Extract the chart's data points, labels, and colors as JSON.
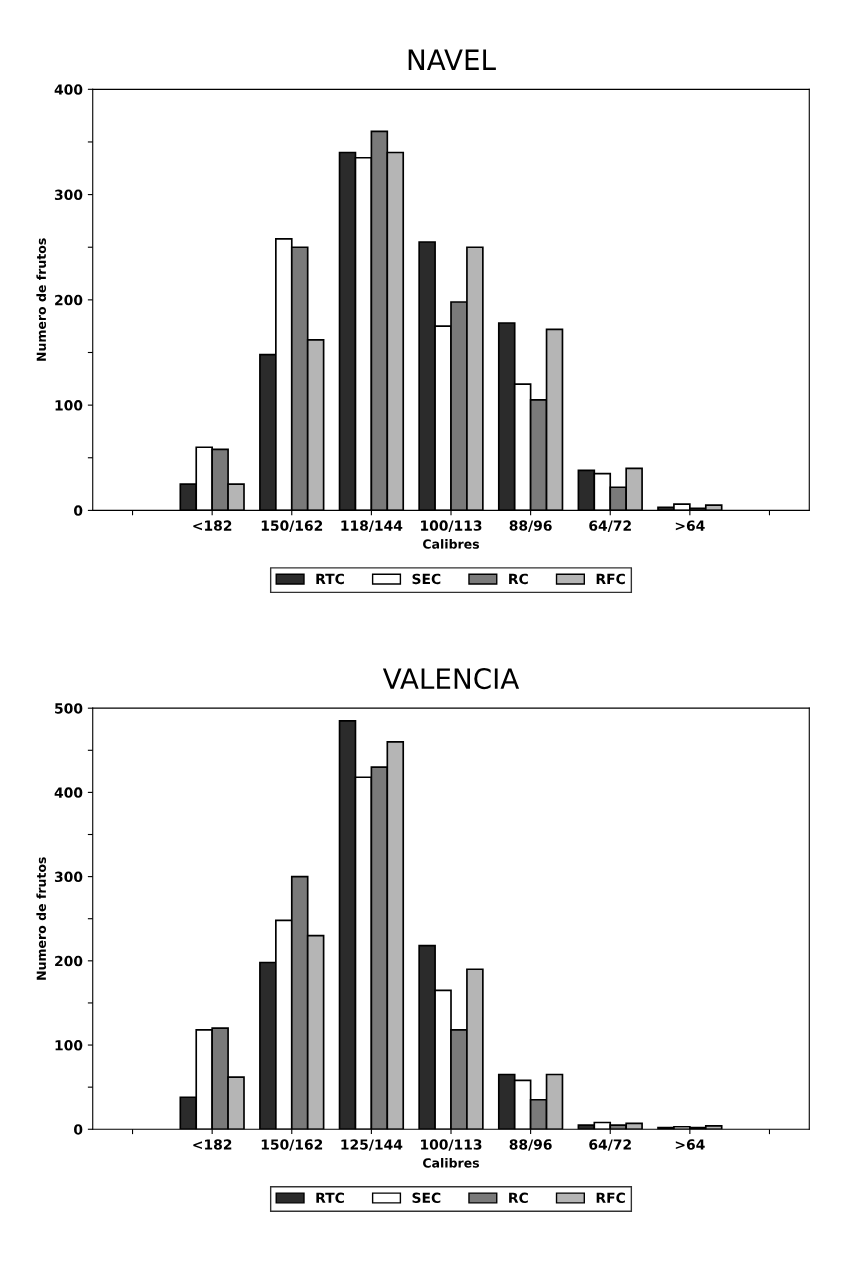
{
  "chart_data": [
    {
      "type": "bar",
      "title": "NAVEL",
      "xlabel": "Calibres",
      "ylabel": "Numero de frutos",
      "categories": [
        null,
        "<182",
        "150/162",
        "118/144",
        "100/113",
        "88/96",
        "64/72",
        ">64",
        null
      ],
      "series": [
        {
          "name": "RTC",
          "color": "#2b2b2b",
          "values": [
            null,
            25,
            148,
            340,
            255,
            178,
            38,
            3,
            null
          ]
        },
        {
          "name": "SEC",
          "color": "#ffffff",
          "values": [
            null,
            60,
            258,
            335,
            175,
            120,
            35,
            6,
            null
          ]
        },
        {
          "name": "RC",
          "color": "#7a7a7a",
          "values": [
            null,
            58,
            250,
            360,
            198,
            105,
            22,
            2,
            null
          ]
        },
        {
          "name": "RFC",
          "color": "#b5b5b5",
          "values": [
            null,
            25,
            162,
            340,
            250,
            172,
            40,
            5,
            null
          ]
        }
      ],
      "ylim": [
        0,
        400
      ],
      "yticks": [
        0,
        {
          "value": 50,
          "label": null
        },
        100,
        {
          "value": 150,
          "label": null
        },
        200,
        {
          "value": 250,
          "label": null
        },
        300,
        {
          "value": 350,
          "label": null
        },
        400
      ],
      "grid": false,
      "legend": "bottom"
    },
    {
      "type": "bar",
      "title": "VALENCIA",
      "xlabel": "Calibres",
      "ylabel": "Numero de frutos",
      "categories": [
        null,
        "<182",
        "150/162",
        "125/144",
        "100/113",
        "88/96",
        "64/72",
        ">64",
        null
      ],
      "series": [
        {
          "name": "RTC",
          "color": "#2b2b2b",
          "values": [
            null,
            38,
            198,
            485,
            218,
            65,
            5,
            2,
            null
          ]
        },
        {
          "name": "SEC",
          "color": "#ffffff",
          "values": [
            null,
            118,
            248,
            418,
            165,
            58,
            8,
            3,
            null
          ]
        },
        {
          "name": "RC",
          "color": "#7a7a7a",
          "values": [
            null,
            120,
            300,
            430,
            118,
            35,
            5,
            2,
            null
          ]
        },
        {
          "name": "RFC",
          "color": "#b5b5b5",
          "values": [
            null,
            62,
            230,
            460,
            190,
            65,
            7,
            4,
            null
          ]
        }
      ],
      "ylim": [
        0,
        500
      ],
      "yticks": [
        0,
        {
          "value": 50,
          "label": null
        },
        100,
        {
          "value": 150,
          "label": null
        },
        200,
        {
          "value": 250,
          "label": null
        },
        300,
        {
          "value": 350,
          "label": null
        },
        400,
        {
          "value": 450,
          "label": null
        },
        500
      ],
      "grid": false,
      "legend": "bottom"
    }
  ]
}
